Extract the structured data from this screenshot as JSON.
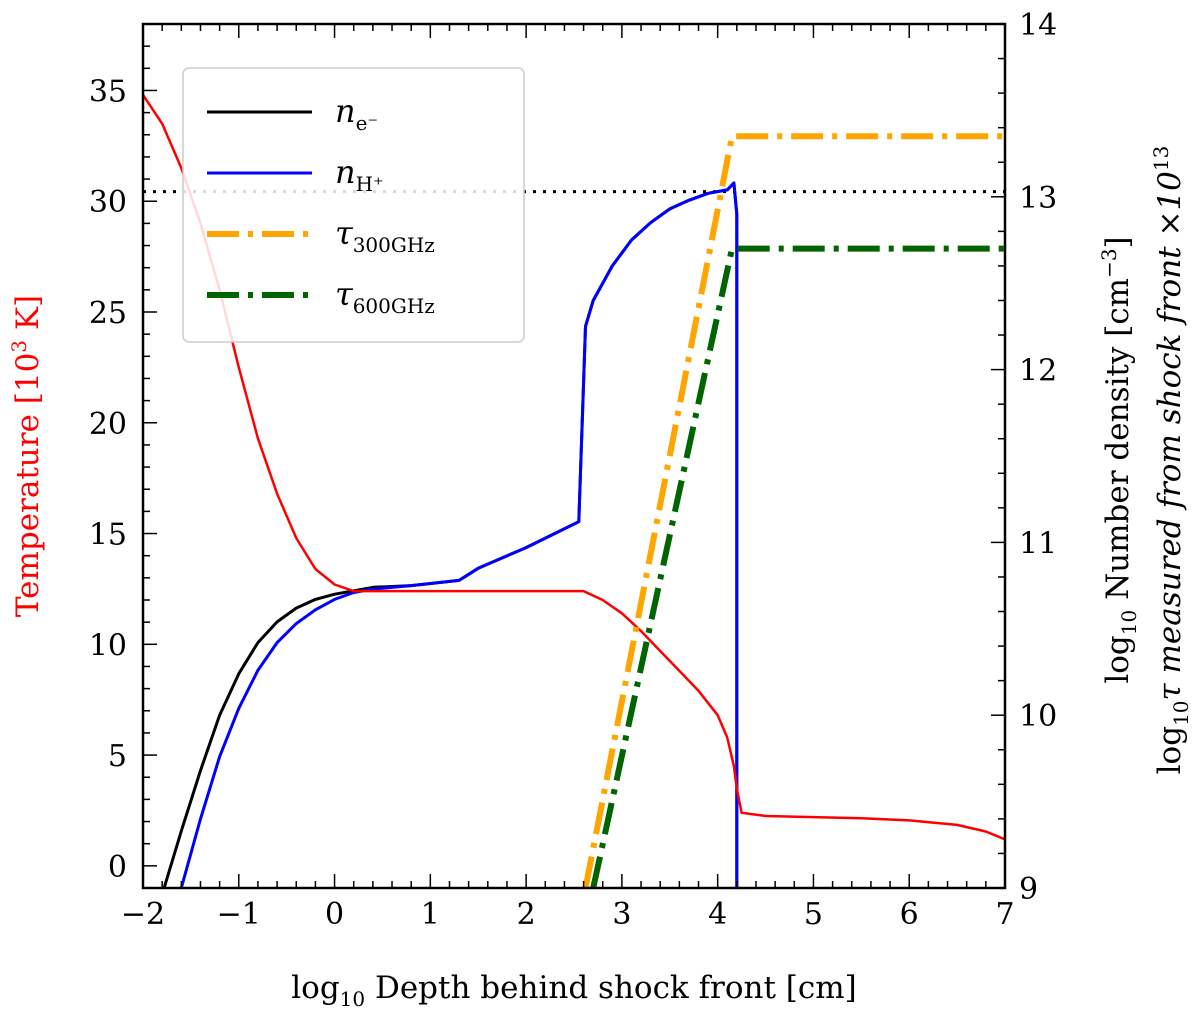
{
  "chart_data": {
    "type": "line",
    "x_axis": {
      "label_main": "log",
      "label_sub": "10",
      "label_rest": " Depth behind shock front [cm]",
      "range": [
        -2,
        7
      ],
      "ticks": [
        -2,
        -1,
        0,
        1,
        2,
        3,
        4,
        5,
        6,
        7
      ],
      "tick_labels": [
        "−2",
        "−1",
        "0",
        "1",
        "2",
        "3",
        "4",
        "5",
        "6",
        "7"
      ]
    },
    "y_left": {
      "label_a": "Temperature [10",
      "label_sup": "3",
      "label_b": " K]",
      "color": "#ff0000",
      "range": [
        -1,
        38
      ],
      "ticks": [
        0,
        5,
        10,
        15,
        20,
        25,
        30,
        35
      ],
      "tick_labels": [
        "0",
        "5",
        "10",
        "15",
        "20",
        "25",
        "30",
        "35"
      ]
    },
    "y_right": {
      "label1_a": "log",
      "label1_sub": "10",
      "label1_b": " Number density [cm",
      "label1_sup": "−3",
      "label1_c": "]",
      "label2_a": "log",
      "label2_sub": "10",
      "label2_b": "τ measured from shock front ×10",
      "label2_sup": "13",
      "range": [
        9,
        14
      ],
      "ticks": [
        9,
        10,
        11,
        12,
        13,
        14
      ],
      "tick_labels": [
        "9",
        "10",
        "11",
        "12",
        "13",
        "14"
      ]
    },
    "reference_line": {
      "y_right": 13.03,
      "style": "dotted",
      "color": "#000000"
    },
    "series": [
      {
        "name": "n_e-",
        "legend_main": "n",
        "legend_sub": "e⁻",
        "color": "#000000",
        "axis": "right",
        "dash": "solid",
        "x": [
          -1.78,
          -1.6,
          -1.4,
          -1.2,
          -1.0,
          -0.8,
          -0.6,
          -0.4,
          -0.2,
          0.0,
          0.2,
          0.4,
          0.8,
          1.3,
          1.5,
          2.0,
          2.55,
          2.62,
          2.7,
          2.9,
          3.1,
          3.3,
          3.5,
          3.7,
          3.9,
          4.1,
          4.17,
          4.2,
          4.2
        ],
        "values": [
          9.0,
          9.33,
          9.68,
          10.0,
          10.24,
          10.42,
          10.54,
          10.62,
          10.67,
          10.7,
          10.72,
          10.74,
          10.75,
          10.78,
          10.85,
          10.97,
          11.12,
          12.25,
          12.4,
          12.6,
          12.75,
          12.85,
          12.93,
          12.98,
          13.02,
          13.04,
          13.08,
          12.9,
          9.0
        ]
      },
      {
        "name": "n_H+",
        "legend_main": "n",
        "legend_sub": "H⁺",
        "color": "#0000ff",
        "axis": "right",
        "dash": "solid",
        "x": [
          -1.6,
          -1.4,
          -1.2,
          -1.0,
          -0.8,
          -0.6,
          -0.4,
          -0.2,
          0.0,
          0.2,
          0.4,
          0.8,
          1.3,
          1.5,
          2.0,
          2.55,
          2.62,
          2.7,
          2.9,
          3.1,
          3.3,
          3.5,
          3.7,
          3.9,
          4.1,
          4.17,
          4.2,
          4.2
        ],
        "values": [
          9.0,
          9.4,
          9.76,
          10.04,
          10.26,
          10.42,
          10.53,
          10.61,
          10.67,
          10.71,
          10.73,
          10.75,
          10.78,
          10.85,
          10.97,
          11.12,
          12.25,
          12.4,
          12.6,
          12.75,
          12.85,
          12.93,
          12.98,
          13.02,
          13.04,
          13.08,
          12.9,
          9.0
        ]
      },
      {
        "name": "Temperature",
        "color": "#ff0000",
        "axis": "left",
        "dash": "solid",
        "x": [
          -2.0,
          -1.8,
          -1.6,
          -1.4,
          -1.2,
          -1.0,
          -0.8,
          -0.6,
          -0.4,
          -0.2,
          0.0,
          0.2,
          0.5,
          1.0,
          1.5,
          2.0,
          2.6,
          2.8,
          3.0,
          3.2,
          3.4,
          3.6,
          3.8,
          4.0,
          4.1,
          4.17,
          4.2,
          4.25,
          4.5,
          5.0,
          5.5,
          6.0,
          6.5,
          6.8,
          7.0
        ],
        "values": [
          34.8,
          33.5,
          31.5,
          29.0,
          26.0,
          22.5,
          19.3,
          16.8,
          14.8,
          13.4,
          12.7,
          12.4,
          12.4,
          12.4,
          12.4,
          12.4,
          12.4,
          12.0,
          11.4,
          10.6,
          9.7,
          8.8,
          7.9,
          6.8,
          5.8,
          4.5,
          3.5,
          2.4,
          2.25,
          2.2,
          2.15,
          2.05,
          1.85,
          1.55,
          1.2
        ]
      },
      {
        "name": "tau_300GHz",
        "legend_main": "τ",
        "legend_sub": "300GHz",
        "color": "#ffa500",
        "axis": "right",
        "dash": "dashdot",
        "x": [
          2.62,
          4.15,
          7.0
        ],
        "values": [
          9.0,
          13.35,
          13.35
        ]
      },
      {
        "name": "tau_600GHz",
        "legend_main": "τ",
        "legend_sub": "600GHz",
        "color": "#006400",
        "axis": "right",
        "dash": "dashdot",
        "x": [
          2.7,
          4.15,
          7.0
        ],
        "values": [
          9.0,
          12.7,
          12.7
        ]
      }
    ]
  }
}
